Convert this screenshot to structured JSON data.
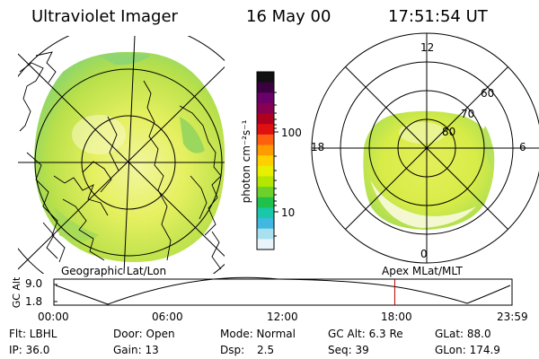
{
  "header": {
    "instrument": "Ultraviolet Imager",
    "date": "16 May 00",
    "time": "17:51:54 UT"
  },
  "colorbar": {
    "unit_label": "photon cm⁻²s⁻¹",
    "ticks": [
      "100",
      "10"
    ],
    "colors": [
      "#101010",
      "#3a0040",
      "#6a006a",
      "#8a0050",
      "#b00020",
      "#e01010",
      "#ff6010",
      "#ff9a00",
      "#ffd000",
      "#e6f000",
      "#b4e600",
      "#6cd22a",
      "#20c04c",
      "#18c8a8",
      "#40b8e0",
      "#a8e0f0",
      "#e8f4fa"
    ]
  },
  "left_map": {
    "caption": "Geographic Lat/Lon"
  },
  "right_map": {
    "caption": "Apex MLat/MLT",
    "mlt_labels": {
      "top": "12",
      "left": "18",
      "right": "6",
      "bottom": "0"
    },
    "lat_labels": [
      "60",
      "70",
      "80"
    ]
  },
  "altitude_plot": {
    "ylabel": "GC Alt",
    "yticks": [
      "9.0",
      "1.8"
    ],
    "xticks": [
      "00:00",
      "06:00",
      "12:00",
      "18:00",
      "23:59"
    ],
    "current_marker_fraction": 0.744
  },
  "info": {
    "row1": [
      "Flt: LBHL",
      "Door: Open",
      "Mode: Normal",
      "GC Alt: 6.3 Re",
      "GLat: 88.0"
    ],
    "row2": [
      "IP: 36.0",
      "Gain: 13",
      "Dsp:",
      "2.5",
      "Seq: 39",
      "GLon: 174.9"
    ]
  }
}
